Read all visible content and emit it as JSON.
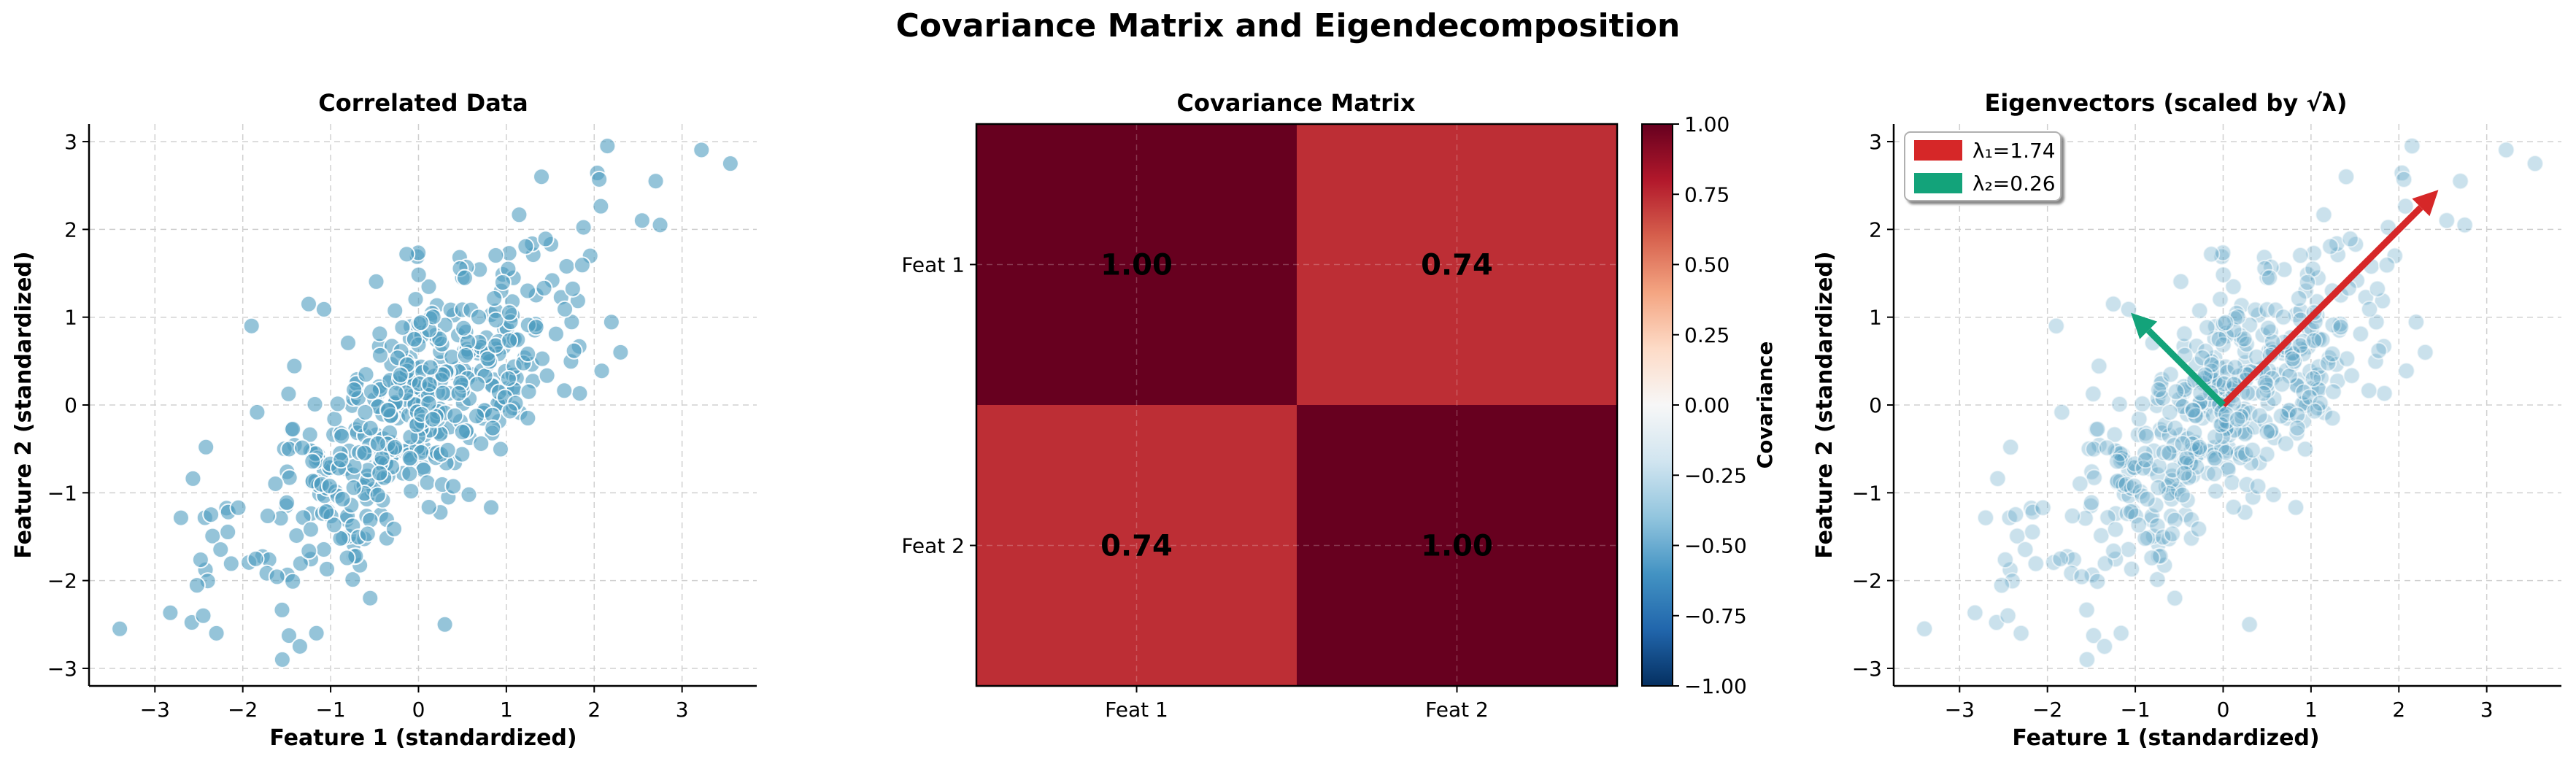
{
  "figure": {
    "title": "Covariance Matrix and Eigendecomposition"
  },
  "colors": {
    "point": "#4f9cc0",
    "point_edge": "#ffffff",
    "eig1": "#d62728",
    "eig2": "#13a37a",
    "grid": "#d0d0d0"
  },
  "chart_data": [
    {
      "type": "scatter",
      "title": "Correlated Data",
      "xlabel": "Feature 1 (standardized)",
      "ylabel": "Feature 2 (standardized)",
      "xlim": [
        -3.75,
        3.85
      ],
      "ylim": [
        -3.2,
        3.2
      ],
      "xticks": [
        -3,
        -2,
        -1,
        0,
        1,
        2,
        3
      ],
      "yticks": [
        -3,
        -2,
        -1,
        0,
        1,
        2,
        3
      ],
      "xtick_labels": [
        "−3",
        "−2",
        "−1",
        "0",
        "1",
        "2",
        "3"
      ],
      "ytick_labels": [
        "−3",
        "−2",
        "−1",
        "0",
        "1",
        "2",
        "3"
      ],
      "grid": true,
      "n_points": 500,
      "correlation": 0.74,
      "highlighted_points": [
        {
          "x": -3.4,
          "y": -2.55
        },
        {
          "x": -1.55,
          "y": -2.9
        },
        {
          "x": -1.35,
          "y": -2.75
        },
        {
          "x": -2.3,
          "y": -2.6
        },
        {
          "x": -2.45,
          "y": -2.4
        },
        {
          "x": -1.9,
          "y": 0.9
        },
        {
          "x": -1.25,
          "y": 1.15
        },
        {
          "x": 2.15,
          "y": 2.95
        },
        {
          "x": 2.7,
          "y": 2.55
        },
        {
          "x": 3.55,
          "y": 2.75
        },
        {
          "x": 2.75,
          "y": 2.05
        },
        {
          "x": 1.4,
          "y": 2.6
        },
        {
          "x": 2.3,
          "y": 0.6
        },
        {
          "x": 0.3,
          "y": -2.5
        },
        {
          "x": -0.55,
          "y": -2.2
        }
      ]
    },
    {
      "type": "heatmap",
      "title": "Covariance Matrix",
      "x_categories": [
        "Feat 1",
        "Feat 2"
      ],
      "y_categories": [
        "Feat 1",
        "Feat 2"
      ],
      "values": [
        [
          1.0,
          0.74
        ],
        [
          0.74,
          1.0
        ]
      ],
      "value_labels": [
        [
          "1.00",
          "0.74"
        ],
        [
          "0.74",
          "1.00"
        ]
      ],
      "colormap": "RdBu_r",
      "vmin": -1.0,
      "vmax": 1.0,
      "colorbar_label": "Covariance",
      "colorbar_ticks": [
        1.0,
        0.75,
        0.5,
        0.25,
        0.0,
        -0.25,
        -0.5,
        -0.75,
        -1.0
      ],
      "colorbar_tick_labels": [
        "1.00",
        "0.75",
        "0.50",
        "0.25",
        "0.00",
        "−0.25",
        "−0.50",
        "−0.75",
        "−1.00"
      ]
    },
    {
      "type": "scatter",
      "title": "Eigenvectors (scaled by √λ)",
      "xlabel": "Feature 1 (standardized)",
      "ylabel": "Feature 2 (standardized)",
      "xlim": [
        -3.75,
        3.85
      ],
      "ylim": [
        -3.2,
        3.2
      ],
      "xticks": [
        -3,
        -2,
        -1,
        0,
        1,
        2,
        3
      ],
      "yticks": [
        -3,
        -2,
        -1,
        0,
        1,
        2,
        3
      ],
      "xtick_labels": [
        "−3",
        "−2",
        "−1",
        "0",
        "1",
        "2",
        "3"
      ],
      "ytick_labels": [
        "−3",
        "−2",
        "−1",
        "0",
        "1",
        "2",
        "3"
      ],
      "grid": true,
      "legend_position": "upper-left",
      "eigenvalues": [
        1.74,
        0.26
      ],
      "vectors": [
        {
          "name": "λ₁=1.74",
          "x0": 0,
          "y0": 0,
          "x1": 2.45,
          "y1": 2.45
        },
        {
          "name": "λ₂=0.26",
          "x0": 0,
          "y0": 0,
          "x1": -1.05,
          "y1": 1.05
        }
      ],
      "legend": [
        "λ₁=1.74",
        "λ₂=0.26"
      ]
    }
  ]
}
